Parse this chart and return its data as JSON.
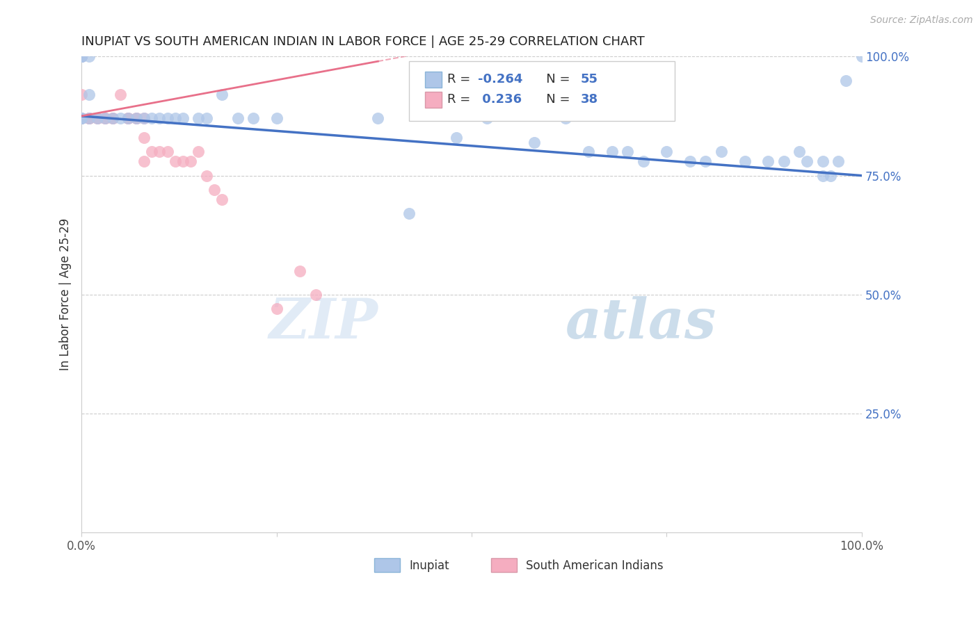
{
  "title": "INUPIAT VS SOUTH AMERICAN INDIAN IN LABOR FORCE | AGE 25-29 CORRELATION CHART",
  "source": "Source: ZipAtlas.com",
  "ylabel": "In Labor Force | Age 25-29",
  "xlim": [
    0,
    1
  ],
  "ylim": [
    0,
    1
  ],
  "xtick_values": [
    0,
    0.25,
    0.5,
    0.75,
    1.0
  ],
  "xticklabels": [
    "0.0%",
    "",
    "",
    "",
    "100.0%"
  ],
  "ytick_labels_right": [
    "100.0%",
    "75.0%",
    "50.0%",
    "25.0%"
  ],
  "ytick_values_right": [
    1.0,
    0.75,
    0.5,
    0.25
  ],
  "inupiat_R": -0.264,
  "inupiat_N": 55,
  "sai_R": 0.236,
  "sai_N": 38,
  "inupiat_color": "#aec6e8",
  "sai_color": "#f5adc0",
  "inupiat_line_color": "#4472c4",
  "sai_line_color": "#e8708a",
  "legend_label_inupiat": "Inupiat",
  "legend_label_sai": "South American Indians",
  "watermark_zip": "ZIP",
  "watermark_atlas": "atlas",
  "background_color": "#ffffff",
  "grid_color": "#cccccc",
  "inupiat_x": [
    0.0,
    0.0,
    0.0,
    0.0,
    0.0,
    0.0,
    0.0,
    0.0,
    0.0,
    0.01,
    0.01,
    0.01,
    0.02,
    0.03,
    0.04,
    0.05,
    0.06,
    0.07,
    0.08,
    0.09,
    0.1,
    0.11,
    0.12,
    0.13,
    0.15,
    0.16,
    0.18,
    0.2,
    0.22,
    0.25,
    0.38,
    0.42,
    0.48,
    0.52,
    0.58,
    0.62,
    0.65,
    0.68,
    0.7,
    0.72,
    0.75,
    0.78,
    0.8,
    0.82,
    0.85,
    0.88,
    0.9,
    0.92,
    0.93,
    0.95,
    0.95,
    0.96,
    0.97,
    0.98,
    1.0
  ],
  "inupiat_y": [
    1.0,
    1.0,
    1.0,
    1.0,
    1.0,
    1.0,
    0.87,
    0.87,
    0.87,
    1.0,
    0.92,
    0.87,
    0.87,
    0.87,
    0.87,
    0.87,
    0.87,
    0.87,
    0.87,
    0.87,
    0.87,
    0.87,
    0.87,
    0.87,
    0.87,
    0.87,
    0.92,
    0.87,
    0.87,
    0.87,
    0.87,
    0.67,
    0.83,
    0.87,
    0.82,
    0.87,
    0.8,
    0.8,
    0.8,
    0.78,
    0.8,
    0.78,
    0.78,
    0.8,
    0.78,
    0.78,
    0.78,
    0.8,
    0.78,
    0.78,
    0.75,
    0.75,
    0.78,
    0.95,
    1.0
  ],
  "sai_x": [
    0.0,
    0.0,
    0.0,
    0.0,
    0.0,
    0.0,
    0.0,
    0.0,
    0.01,
    0.01,
    0.01,
    0.02,
    0.02,
    0.03,
    0.03,
    0.04,
    0.04,
    0.05,
    0.06,
    0.06,
    0.07,
    0.07,
    0.08,
    0.08,
    0.08,
    0.09,
    0.1,
    0.11,
    0.12,
    0.13,
    0.14,
    0.15,
    0.16,
    0.17,
    0.18,
    0.25,
    0.28,
    0.3
  ],
  "sai_y": [
    1.0,
    1.0,
    1.0,
    1.0,
    1.0,
    0.92,
    0.87,
    0.87,
    0.87,
    0.87,
    0.87,
    0.87,
    0.87,
    0.87,
    0.87,
    0.87,
    0.87,
    0.92,
    0.87,
    0.87,
    0.87,
    0.87,
    0.87,
    0.83,
    0.78,
    0.8,
    0.8,
    0.8,
    0.78,
    0.78,
    0.78,
    0.8,
    0.75,
    0.72,
    0.7,
    0.47,
    0.55,
    0.5
  ],
  "blue_trend_x0": 0.0,
  "blue_trend_y0": 0.875,
  "blue_trend_x1": 1.0,
  "blue_trend_y1": 0.75,
  "pink_trend_x0": 0.0,
  "pink_trend_y0": 0.875,
  "pink_trend_x1": 0.38,
  "pink_trend_y1": 0.99
}
